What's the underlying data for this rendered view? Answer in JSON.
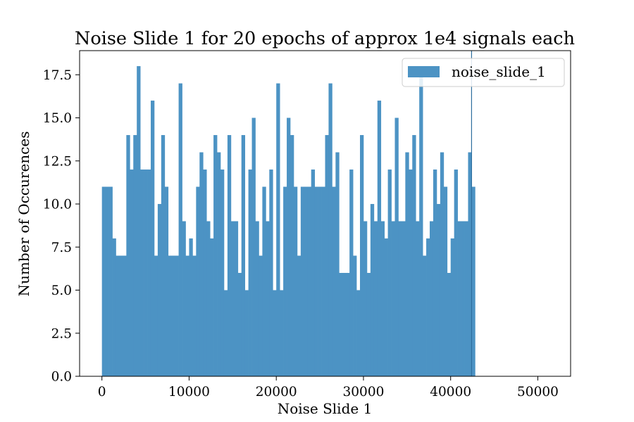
{
  "chart_data": {
    "type": "bar",
    "title": "Noise Slide 1 for 20 epochs of approx 1e4 signals each",
    "xlabel": "Noise Slide 1",
    "ylabel": "Number of Occurences",
    "xlim": [
      -2560,
      53760
    ],
    "ylim": [
      0,
      18.9
    ],
    "xticks": [
      0,
      10000,
      20000,
      30000,
      40000,
      50000
    ],
    "xtick_labels": [
      "0",
      "10000",
      "20000",
      "30000",
      "40000",
      "50000"
    ],
    "yticks": [
      0,
      2.5,
      5,
      7.5,
      10,
      12.5,
      15,
      17.5
    ],
    "ytick_labels": [
      "0.0",
      "2.5",
      "5.0",
      "7.5",
      "10.0",
      "12.5",
      "15.0",
      "17.5"
    ],
    "grid": false,
    "legend_position": "top-right",
    "series": [
      {
        "name": "noise_slide_1",
        "color": "#4c93c4",
        "bin_start": 0,
        "bin_width": 400,
        "values": [
          11,
          11,
          11,
          8,
          7,
          7,
          7,
          14,
          12,
          14,
          18,
          12,
          12,
          12,
          16,
          7,
          10,
          14,
          11,
          7,
          7,
          7,
          17,
          9,
          7,
          8,
          7,
          11,
          13,
          12,
          9,
          8,
          14,
          13,
          12,
          5,
          14,
          9,
          9,
          6,
          14,
          5,
          12,
          15,
          9,
          7,
          11,
          9,
          12,
          5,
          17,
          5,
          11,
          15,
          14,
          11,
          7,
          11,
          11,
          11,
          12,
          11,
          11,
          11,
          14,
          17,
          11,
          13,
          6,
          6,
          6,
          12,
          7,
          5,
          14,
          9,
          6,
          10,
          9,
          16,
          9,
          8,
          12,
          9,
          15,
          9,
          9,
          13,
          12,
          14,
          9,
          18,
          7,
          8,
          9,
          12,
          10,
          13,
          11,
          6,
          8,
          12,
          9,
          9,
          9,
          13,
          11
        ]
      }
    ],
    "annotations": [
      {
        "type": "vline",
        "x": 42400,
        "color": "#2f6f9f"
      }
    ]
  }
}
